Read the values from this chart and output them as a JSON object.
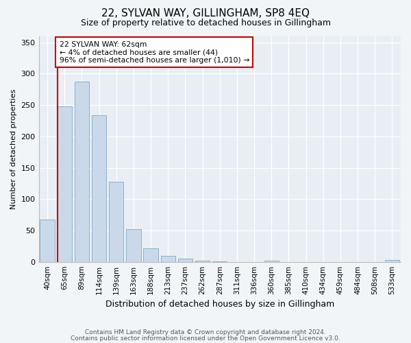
{
  "title": "22, SYLVAN WAY, GILLINGHAM, SP8 4EQ",
  "subtitle": "Size of property relative to detached houses in Gillingham",
  "xlabel": "Distribution of detached houses by size in Gillingham",
  "ylabel": "Number of detached properties",
  "categories": [
    "40sqm",
    "65sqm",
    "89sqm",
    "114sqm",
    "139sqm",
    "163sqm",
    "188sqm",
    "213sqm",
    "237sqm",
    "262sqm",
    "287sqm",
    "311sqm",
    "336sqm",
    "360sqm",
    "385sqm",
    "410sqm",
    "434sqm",
    "459sqm",
    "484sqm",
    "508sqm",
    "533sqm"
  ],
  "values": [
    67,
    248,
    287,
    234,
    128,
    52,
    22,
    10,
    5,
    2,
    1,
    0,
    0,
    2,
    0,
    0,
    0,
    0,
    0,
    0,
    3
  ],
  "bar_color": "#c9d9ea",
  "bar_edge_color": "#8ab0cc",
  "property_line_x": 1.0,
  "annotation_title": "22 SYLVAN WAY: 62sqm",
  "annotation_line1": "← 4% of detached houses are smaller (44)",
  "annotation_line2": "96% of semi-detached houses are larger (1,010) →",
  "annotation_box_color": "#ffffff",
  "annotation_box_edge": "#cc0000",
  "property_line_color": "#cc0000",
  "ylim": [
    0,
    360
  ],
  "yticks": [
    0,
    50,
    100,
    150,
    200,
    250,
    300,
    350
  ],
  "footer_line1": "Contains HM Land Registry data © Crown copyright and database right 2024.",
  "footer_line2": "Contains public sector information licensed under the Open Government Licence v3.0.",
  "bg_color": "#f2f5f8",
  "plot_bg_color": "#e8eef4",
  "title_fontsize": 11,
  "subtitle_fontsize": 9,
  "xlabel_fontsize": 9,
  "ylabel_fontsize": 8
}
